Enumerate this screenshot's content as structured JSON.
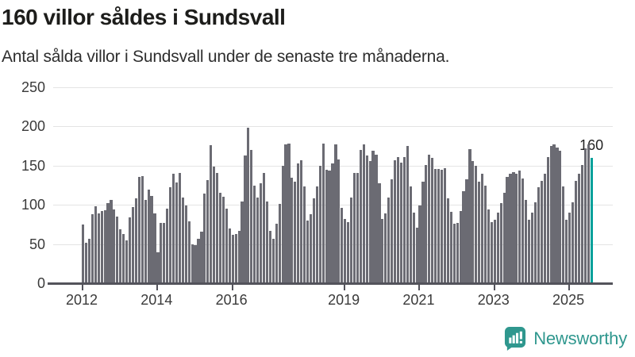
{
  "header": {
    "title": "160 villor såldes i Sundsvall",
    "subtitle": "Antal sålda villor i Sundsvall under de senaste tre månaderna."
  },
  "footer": {
    "brand": "Newsworthy",
    "logo_icon": "bar-chart-speech-bubble-icon",
    "brand_color": "#2f978e"
  },
  "chart_data": {
    "type": "bar",
    "title": "160 villor såldes i Sundsvall",
    "subtitle": "Antal sålda villor i Sundsvall under de senaste tre månaderna.",
    "x_start_month": "2012-01",
    "x_end_month": "2025-08",
    "x_frequency": "monthly",
    "values": [
      75,
      52,
      57,
      88,
      98,
      89,
      92,
      93,
      102,
      106,
      94,
      85,
      69,
      63,
      55,
      84,
      97,
      108,
      136,
      137,
      106,
      119,
      111,
      89,
      39,
      77,
      77,
      95,
      122,
      140,
      129,
      141,
      109,
      99,
      79,
      50,
      49,
      57,
      66,
      114,
      132,
      176,
      149,
      141,
      115,
      110,
      95,
      70,
      62,
      63,
      67,
      104,
      163,
      198,
      170,
      124,
      109,
      128,
      141,
      104,
      67,
      57,
      76,
      101,
      150,
      177,
      178,
      135,
      130,
      153,
      157,
      123,
      80,
      88,
      108,
      123,
      150,
      178,
      145,
      144,
      153,
      177,
      158,
      96,
      82,
      78,
      109,
      141,
      141,
      170,
      177,
      163,
      156,
      169,
      164,
      128,
      82,
      89,
      109,
      133,
      157,
      161,
      154,
      161,
      175,
      123,
      90,
      71,
      99,
      130,
      151,
      164,
      160,
      146,
      146,
      145,
      147,
      108,
      91,
      76,
      77,
      92,
      117,
      133,
      171,
      156,
      150,
      130,
      140,
      125,
      94,
      78,
      81,
      90,
      102,
      115,
      136,
      140,
      142,
      140,
      144,
      134,
      106,
      81,
      90,
      103,
      122,
      131,
      140,
      161,
      175,
      177,
      173,
      169,
      123,
      81,
      90,
      103,
      131,
      140,
      151,
      172,
      177,
      160
    ],
    "highlight": {
      "index": 163,
      "value": 160,
      "label": "160",
      "color": "#00a09a"
    },
    "bar_color": "#6b6b73",
    "grid": true,
    "ylim": [
      0,
      250
    ],
    "y_ticks": [
      0,
      50,
      100,
      150,
      200,
      250
    ],
    "x_ticks": [
      {
        "label": "2012",
        "month_index": 0
      },
      {
        "label": "2014",
        "month_index": 24
      },
      {
        "label": "2016",
        "month_index": 48
      },
      {
        "label": "2019",
        "month_index": 84
      },
      {
        "label": "2021",
        "month_index": 108
      },
      {
        "label": "2023",
        "month_index": 132
      },
      {
        "label": "2025",
        "month_index": 156
      }
    ],
    "legend": "none"
  }
}
